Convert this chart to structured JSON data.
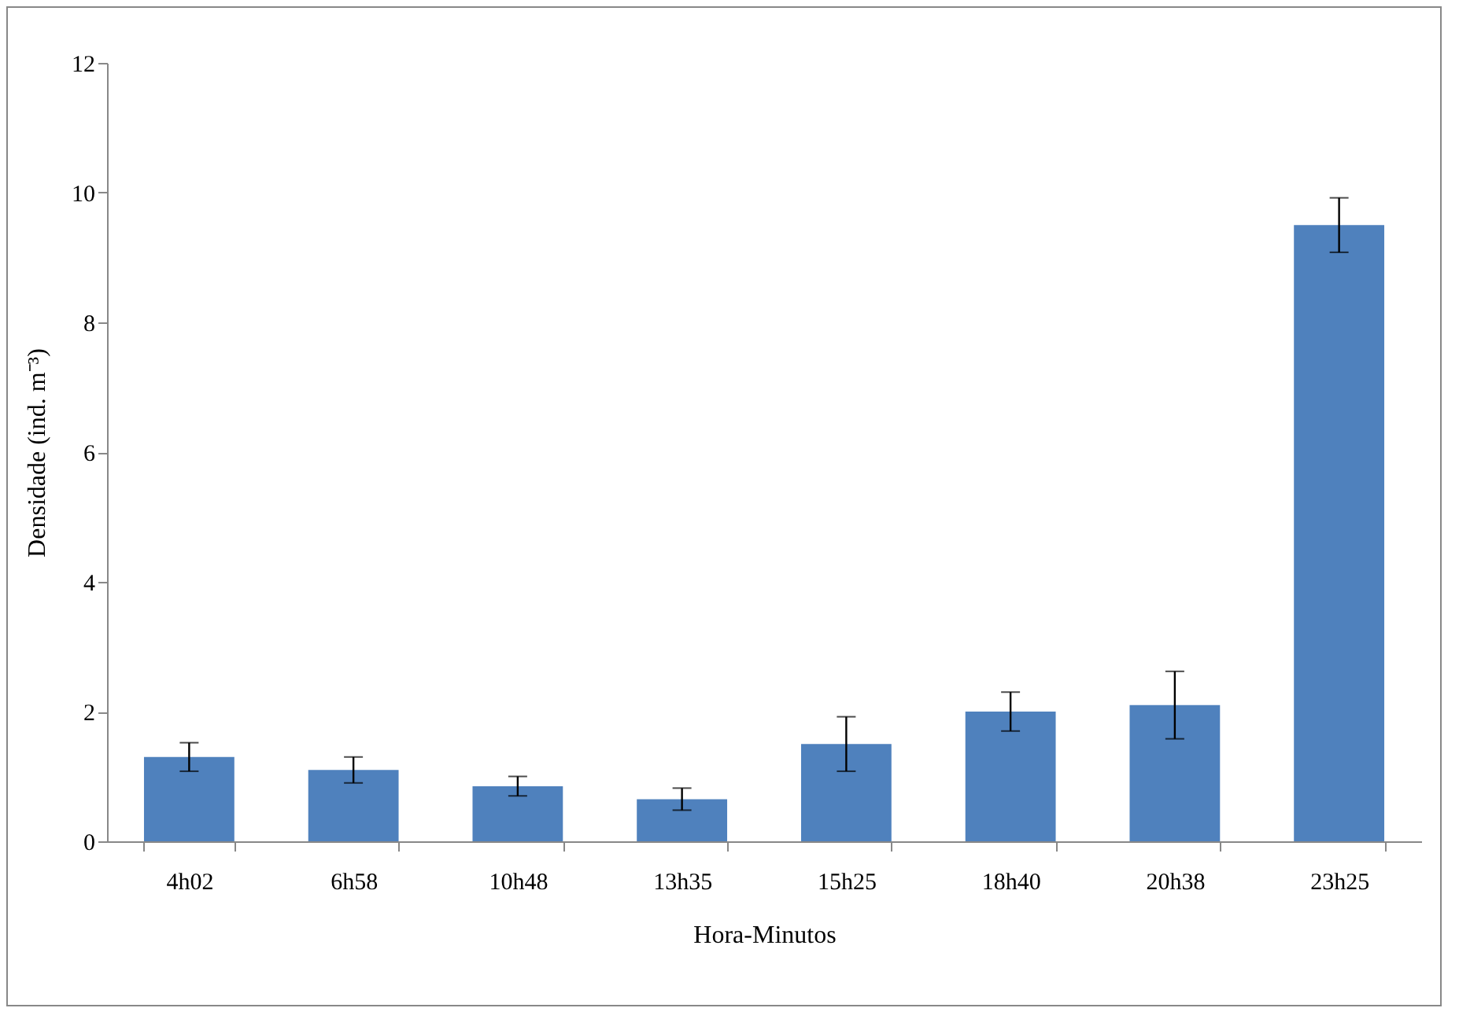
{
  "chart_data": {
    "type": "bar",
    "xlabel": "Hora-Minutos",
    "ylabel": "Densidade (ind. m⁻³)",
    "categories": [
      "4h02",
      "6h58",
      "10h48",
      "13h35",
      "15h25",
      "18h40",
      "20h38",
      "23h25"
    ],
    "values": [
      1.3,
      1.1,
      0.85,
      0.65,
      1.5,
      2.0,
      2.1,
      9.5
    ],
    "errors": [
      0.22,
      0.2,
      0.15,
      0.17,
      0.42,
      0.3,
      0.52,
      0.42
    ],
    "color": "#4f81bd",
    "ylim": [
      0,
      12
    ],
    "yticks": [
      0,
      2,
      4,
      6,
      8,
      10,
      12
    ],
    "grid": false
  }
}
